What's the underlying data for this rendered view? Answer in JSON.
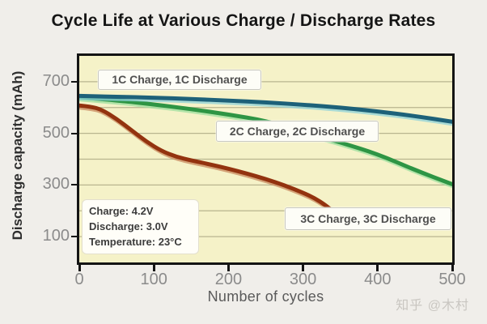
{
  "page": {
    "title": "Cycle Life at Various Charge / Discharge Rates",
    "watermark": "知乎 @木村"
  },
  "colors": {
    "page_bg": "#f0eeea",
    "plot_bg": "#f5f2c8",
    "grid": "#b9b58f",
    "axis_frame": "#141414",
    "series_1c": "#1d6179",
    "series_1c_light": "#8ed1da",
    "series_2c": "#2e9544",
    "series_2c_light": "#9cdf9f",
    "series_3c": "#93330f",
    "series_3c_light": "#c8885e"
  },
  "chart_data": {
    "type": "line",
    "title": "Cycle Life at Various Charge / Discharge Rates",
    "xlabel": "Number of cycles",
    "ylabel": "Discharge capacity (mAh)",
    "xlim": [
      0,
      500
    ],
    "ylim": [
      0,
      800
    ],
    "x_ticks": [
      0,
      100,
      200,
      300,
      400,
      500
    ],
    "y_ticks": [
      100,
      300,
      500,
      700
    ],
    "grid": "horizontal gridlines every 100 mAh",
    "grid_step_y": 100,
    "legend_position": "inline labels on gridlines inside plot",
    "annotation": [
      "Charge: 4.2V",
      "Discharge: 3.0V",
      "Temperature: 23°C"
    ],
    "series": [
      {
        "name": "1C Charge, 1C Discharge",
        "rate": "1C",
        "points": [
          [
            0,
            645
          ],
          [
            50,
            642
          ],
          [
            100,
            638
          ],
          [
            150,
            633
          ],
          [
            200,
            627
          ],
          [
            250,
            620
          ],
          [
            300,
            611
          ],
          [
            350,
            600
          ],
          [
            400,
            585
          ],
          [
            450,
            567
          ],
          [
            500,
            545
          ]
        ]
      },
      {
        "name": "2C Charge, 2C Discharge",
        "rate": "2C",
        "points": [
          [
            0,
            640
          ],
          [
            50,
            628
          ],
          [
            100,
            612
          ],
          [
            150,
            594
          ],
          [
            200,
            573
          ],
          [
            250,
            549
          ],
          [
            300,
            506
          ],
          [
            350,
            465
          ],
          [
            400,
            420
          ],
          [
            450,
            358
          ],
          [
            500,
            303
          ]
        ]
      },
      {
        "name": "3C Charge, 3C Discharge",
        "rate": "3C",
        "points": [
          [
            0,
            608
          ],
          [
            15,
            604
          ],
          [
            30,
            592
          ],
          [
            50,
            556
          ],
          [
            70,
            512
          ],
          [
            90,
            468
          ],
          [
            110,
            432
          ],
          [
            130,
            409
          ],
          [
            150,
            395
          ],
          [
            175,
            380
          ],
          [
            200,
            363
          ],
          [
            225,
            344
          ],
          [
            250,
            323
          ],
          [
            275,
            299
          ],
          [
            300,
            270
          ],
          [
            315,
            250
          ],
          [
            330,
            222
          ],
          [
            340,
            198
          ]
        ]
      }
    ]
  }
}
